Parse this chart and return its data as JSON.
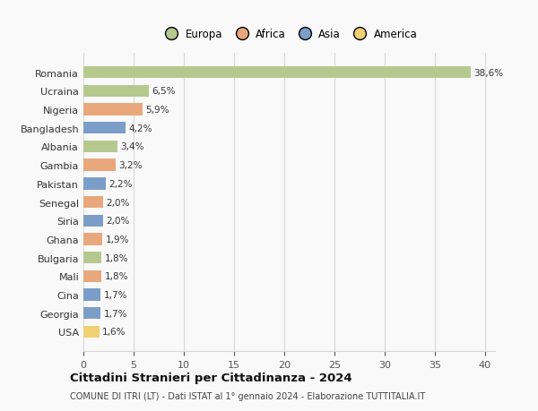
{
  "countries": [
    "Romania",
    "Ucraina",
    "Nigeria",
    "Bangladesh",
    "Albania",
    "Gambia",
    "Pakistan",
    "Senegal",
    "Siria",
    "Ghana",
    "Bulgaria",
    "Mali",
    "Cina",
    "Georgia",
    "USA"
  ],
  "values": [
    38.6,
    6.5,
    5.9,
    4.2,
    3.4,
    3.2,
    2.2,
    2.0,
    2.0,
    1.9,
    1.8,
    1.8,
    1.7,
    1.7,
    1.6
  ],
  "labels": [
    "38,6%",
    "6,5%",
    "5,9%",
    "4,2%",
    "3,4%",
    "3,2%",
    "2,2%",
    "2,0%",
    "2,0%",
    "1,9%",
    "1,8%",
    "1,8%",
    "1,7%",
    "1,7%",
    "1,6%"
  ],
  "continents": [
    "Europa",
    "Europa",
    "Africa",
    "Asia",
    "Europa",
    "Africa",
    "Asia",
    "Africa",
    "Asia",
    "Africa",
    "Europa",
    "Africa",
    "Asia",
    "Asia",
    "America"
  ],
  "colors": {
    "Europa": "#b5c98e",
    "Africa": "#e8a87c",
    "Asia": "#7b9ec9",
    "America": "#f0d070"
  },
  "legend_order": [
    "Europa",
    "Africa",
    "Asia",
    "America"
  ],
  "title": "Cittadini Stranieri per Cittadinanza - 2024",
  "subtitle": "COMUNE DI ITRI (LT) - Dati ISTAT al 1° gennaio 2024 - Elaborazione TUTTITALIA.IT",
  "xlim": [
    0,
    41
  ],
  "xticks": [
    0,
    5,
    10,
    15,
    20,
    25,
    30,
    35,
    40
  ],
  "background_color": "#f9f9f9",
  "grid_color": "#d8d8d8"
}
